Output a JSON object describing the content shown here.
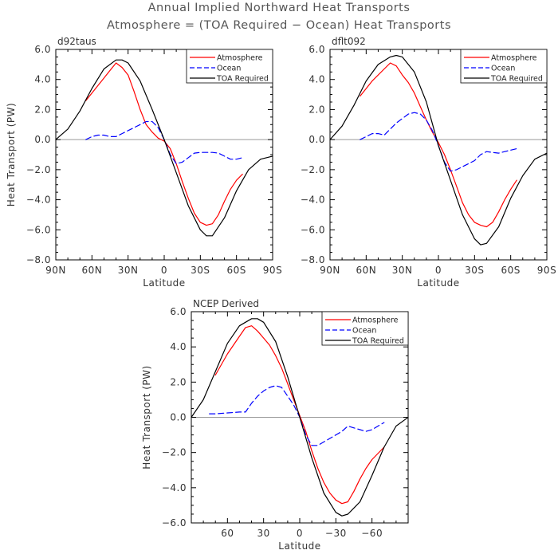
{
  "figure": {
    "title_line1": "Annual Implied Northward Heat Transports",
    "title_line2": "Atmosphere = (TOA Required − Ocean) Heat Transports"
  },
  "colors": {
    "atmosphere": "#ff0000",
    "ocean": "#0000ff",
    "toa": "#000000",
    "zero_line": "#999999"
  },
  "chart_data": [
    {
      "type": "line",
      "panel_title": "d92taus",
      "xlabel": "Latitude",
      "ylabel": "Heat Transport (PW)",
      "x_direction": "90N (left) to 90S (right)",
      "xlim": [
        90,
        -90
      ],
      "ylim": [
        -8,
        6
      ],
      "x_ticks": [
        90,
        60,
        30,
        0,
        -30,
        -60,
        -90
      ],
      "x_tick_labels": [
        "90N",
        "60N",
        "30N",
        "0",
        "30S",
        "60S",
        "90S"
      ],
      "y_ticks": [
        -8,
        -6,
        -4,
        -2,
        0,
        2,
        4,
        6
      ],
      "y_tick_labels": [
        "−8.0",
        "−6.0",
        "−4.0",
        "−2.0",
        "0.0",
        "2.0",
        "4.0",
        "6.0"
      ],
      "legend_position": "top-right",
      "legend": [
        "Atmosphere",
        "Ocean",
        "TOA Required"
      ],
      "series": [
        {
          "name": "Atmosphere",
          "color": "#ff0000",
          "dash": "solid",
          "x": [
            65,
            55,
            45,
            40,
            35,
            30,
            25,
            20,
            15,
            10,
            5,
            0,
            -5,
            -10,
            -15,
            -20,
            -25,
            -30,
            -35,
            -40,
            -45,
            -50,
            -55,
            -60,
            -65
          ],
          "y": [
            2.6,
            3.6,
            4.6,
            5.1,
            4.8,
            4.3,
            3.2,
            2.0,
            1.0,
            0.5,
            0.1,
            -0.1,
            -0.6,
            -1.6,
            -2.8,
            -3.9,
            -4.9,
            -5.5,
            -5.7,
            -5.6,
            -5.0,
            -4.1,
            -3.3,
            -2.7,
            -2.3
          ]
        },
        {
          "name": "Ocean",
          "color": "#0000ff",
          "dash": "dashed",
          "x": [
            65,
            60,
            55,
            50,
            45,
            40,
            35,
            30,
            25,
            20,
            15,
            10,
            5,
            0,
            -5,
            -10,
            -15,
            -20,
            -25,
            -30,
            -35,
            -40,
            -45,
            -50,
            -55,
            -60,
            -65
          ],
          "y": [
            0.0,
            0.2,
            0.3,
            0.3,
            0.2,
            0.2,
            0.4,
            0.6,
            0.8,
            1.0,
            1.2,
            1.2,
            0.8,
            0.0,
            -1.0,
            -1.6,
            -1.5,
            -1.2,
            -0.9,
            -0.85,
            -0.85,
            -0.85,
            -0.9,
            -1.1,
            -1.3,
            -1.3,
            -1.2
          ]
        },
        {
          "name": "TOA Required",
          "color": "#000000",
          "dash": "solid",
          "x": [
            90,
            80,
            70,
            60,
            50,
            40,
            35,
            30,
            20,
            10,
            0,
            -10,
            -20,
            -30,
            -35,
            -40,
            -50,
            -60,
            -70,
            -80,
            -90
          ],
          "y": [
            0.0,
            0.7,
            1.9,
            3.4,
            4.7,
            5.3,
            5.3,
            5.1,
            3.9,
            2.0,
            0.0,
            -2.2,
            -4.4,
            -6.0,
            -6.4,
            -6.4,
            -5.2,
            -3.4,
            -2.0,
            -1.3,
            -1.1
          ]
        }
      ]
    },
    {
      "type": "line",
      "panel_title": "dflt092",
      "xlabel": "Latitude",
      "ylabel": "",
      "x_direction": "90N (left) to 90S (right)",
      "xlim": [
        90,
        -90
      ],
      "ylim": [
        -8,
        6
      ],
      "x_ticks": [
        90,
        60,
        30,
        0,
        -30,
        -60,
        -90
      ],
      "x_tick_labels": [
        "90N",
        "60N",
        "30N",
        "0",
        "30S",
        "60S",
        "90S"
      ],
      "y_ticks": [
        -8,
        -6,
        -4,
        -2,
        0,
        2,
        4,
        6
      ],
      "y_tick_labels": [
        "−8.0",
        "−6.0",
        "−4.0",
        "−2.0",
        "0.0",
        "2.0",
        "4.0",
        "6.0"
      ],
      "legend_position": "top-right",
      "legend": [
        "Atmosphere",
        "Ocean",
        "TOA Required"
      ],
      "series": [
        {
          "name": "Atmosphere",
          "color": "#ff0000",
          "dash": "solid",
          "x": [
            65,
            55,
            45,
            40,
            35,
            30,
            25,
            20,
            15,
            10,
            5,
            0,
            -5,
            -10,
            -15,
            -20,
            -25,
            -30,
            -35,
            -40,
            -45,
            -50,
            -55,
            -60,
            -65
          ],
          "y": [
            2.9,
            3.9,
            4.7,
            5.1,
            4.9,
            4.3,
            3.8,
            3.1,
            2.2,
            1.3,
            0.5,
            -0.2,
            -1.0,
            -2.0,
            -3.1,
            -4.2,
            -5.0,
            -5.5,
            -5.7,
            -5.8,
            -5.5,
            -4.8,
            -4.0,
            -3.3,
            -2.7
          ]
        },
        {
          "name": "Ocean",
          "color": "#0000ff",
          "dash": "dashed",
          "x": [
            65,
            60,
            55,
            50,
            45,
            40,
            35,
            30,
            25,
            20,
            15,
            10,
            5,
            0,
            -5,
            -10,
            -15,
            -20,
            -25,
            -30,
            -35,
            -40,
            -45,
            -50,
            -55,
            -60,
            -65
          ],
          "y": [
            0.0,
            0.2,
            0.4,
            0.4,
            0.3,
            0.7,
            1.1,
            1.4,
            1.7,
            1.8,
            1.7,
            1.3,
            0.6,
            -0.4,
            -1.5,
            -2.1,
            -2.0,
            -1.8,
            -1.6,
            -1.4,
            -1.0,
            -0.8,
            -0.85,
            -0.9,
            -0.8,
            -0.7,
            -0.6
          ]
        },
        {
          "name": "TOA Required",
          "color": "#000000",
          "dash": "solid",
          "x": [
            90,
            80,
            70,
            60,
            50,
            40,
            35,
            30,
            20,
            10,
            0,
            -10,
            -20,
            -30,
            -35,
            -40,
            -50,
            -60,
            -70,
            -80,
            -90
          ],
          "y": [
            0.0,
            0.9,
            2.3,
            3.9,
            5.0,
            5.5,
            5.6,
            5.5,
            4.5,
            2.5,
            -0.4,
            -2.7,
            -5.0,
            -6.6,
            -7.0,
            -6.9,
            -5.8,
            -3.9,
            -2.4,
            -1.3,
            -0.9
          ]
        }
      ]
    },
    {
      "type": "line",
      "panel_title": "NCEP Derived",
      "xlabel": "Latitude",
      "ylabel": "Heat Transport (PW)",
      "x_direction": "north (left) to south (right)",
      "xlim": [
        90,
        -90
      ],
      "ylim": [
        -6,
        6
      ],
      "x_ticks": [
        60,
        30,
        0,
        -30,
        -60
      ],
      "x_tick_labels": [
        "60",
        "30",
        "0",
        "−30",
        "−60"
      ],
      "y_ticks": [
        -6,
        -4,
        -2,
        0,
        2,
        4,
        6
      ],
      "y_tick_labels": [
        "−6.0",
        "−4.0",
        "−2.0",
        "0.0",
        "2.0",
        "4.0",
        "6.0"
      ],
      "legend_position": "top-right",
      "legend": [
        "Atmosphere",
        "Ocean",
        "TOA Required"
      ],
      "series": [
        {
          "name": "Atmosphere",
          "color": "#ff0000",
          "dash": "solid",
          "x": [
            70,
            60,
            50,
            45,
            40,
            35,
            30,
            25,
            20,
            15,
            10,
            5,
            0,
            -5,
            -10,
            -15,
            -20,
            -25,
            -30,
            -35,
            -40,
            -45,
            -50,
            -55,
            -60,
            -70
          ],
          "y": [
            2.4,
            3.6,
            4.6,
            5.1,
            5.2,
            4.9,
            4.5,
            4.1,
            3.5,
            2.8,
            1.9,
            1.0,
            0.1,
            -0.8,
            -1.9,
            -2.9,
            -3.7,
            -4.3,
            -4.7,
            -4.9,
            -4.8,
            -4.2,
            -3.5,
            -2.9,
            -2.4,
            -1.7
          ]
        },
        {
          "name": "Ocean",
          "color": "#0000ff",
          "dash": "dashed",
          "x": [
            75,
            70,
            60,
            50,
            45,
            40,
            35,
            30,
            25,
            20,
            15,
            10,
            5,
            0,
            -5,
            -10,
            -15,
            -20,
            -25,
            -30,
            -35,
            -40,
            -45,
            -50,
            -55,
            -60,
            -65,
            -70
          ],
          "y": [
            0.2,
            0.2,
            0.25,
            0.3,
            0.3,
            0.8,
            1.2,
            1.5,
            1.7,
            1.8,
            1.7,
            1.2,
            0.7,
            0.0,
            -1.0,
            -1.6,
            -1.6,
            -1.4,
            -1.2,
            -1.0,
            -0.8,
            -0.5,
            -0.6,
            -0.7,
            -0.8,
            -0.7,
            -0.5,
            -0.3
          ]
        },
        {
          "name": "TOA Required",
          "color": "#000000",
          "dash": "solid",
          "x": [
            90,
            80,
            70,
            60,
            50,
            40,
            35,
            30,
            20,
            10,
            0,
            -10,
            -20,
            -30,
            -35,
            -40,
            -50,
            -60,
            -70,
            -80,
            -90
          ],
          "y": [
            0.0,
            1.0,
            2.6,
            4.2,
            5.2,
            5.6,
            5.6,
            5.4,
            4.3,
            2.3,
            0.0,
            -2.3,
            -4.3,
            -5.4,
            -5.6,
            -5.5,
            -4.8,
            -3.3,
            -1.7,
            -0.5,
            0.0
          ]
        }
      ]
    }
  ]
}
